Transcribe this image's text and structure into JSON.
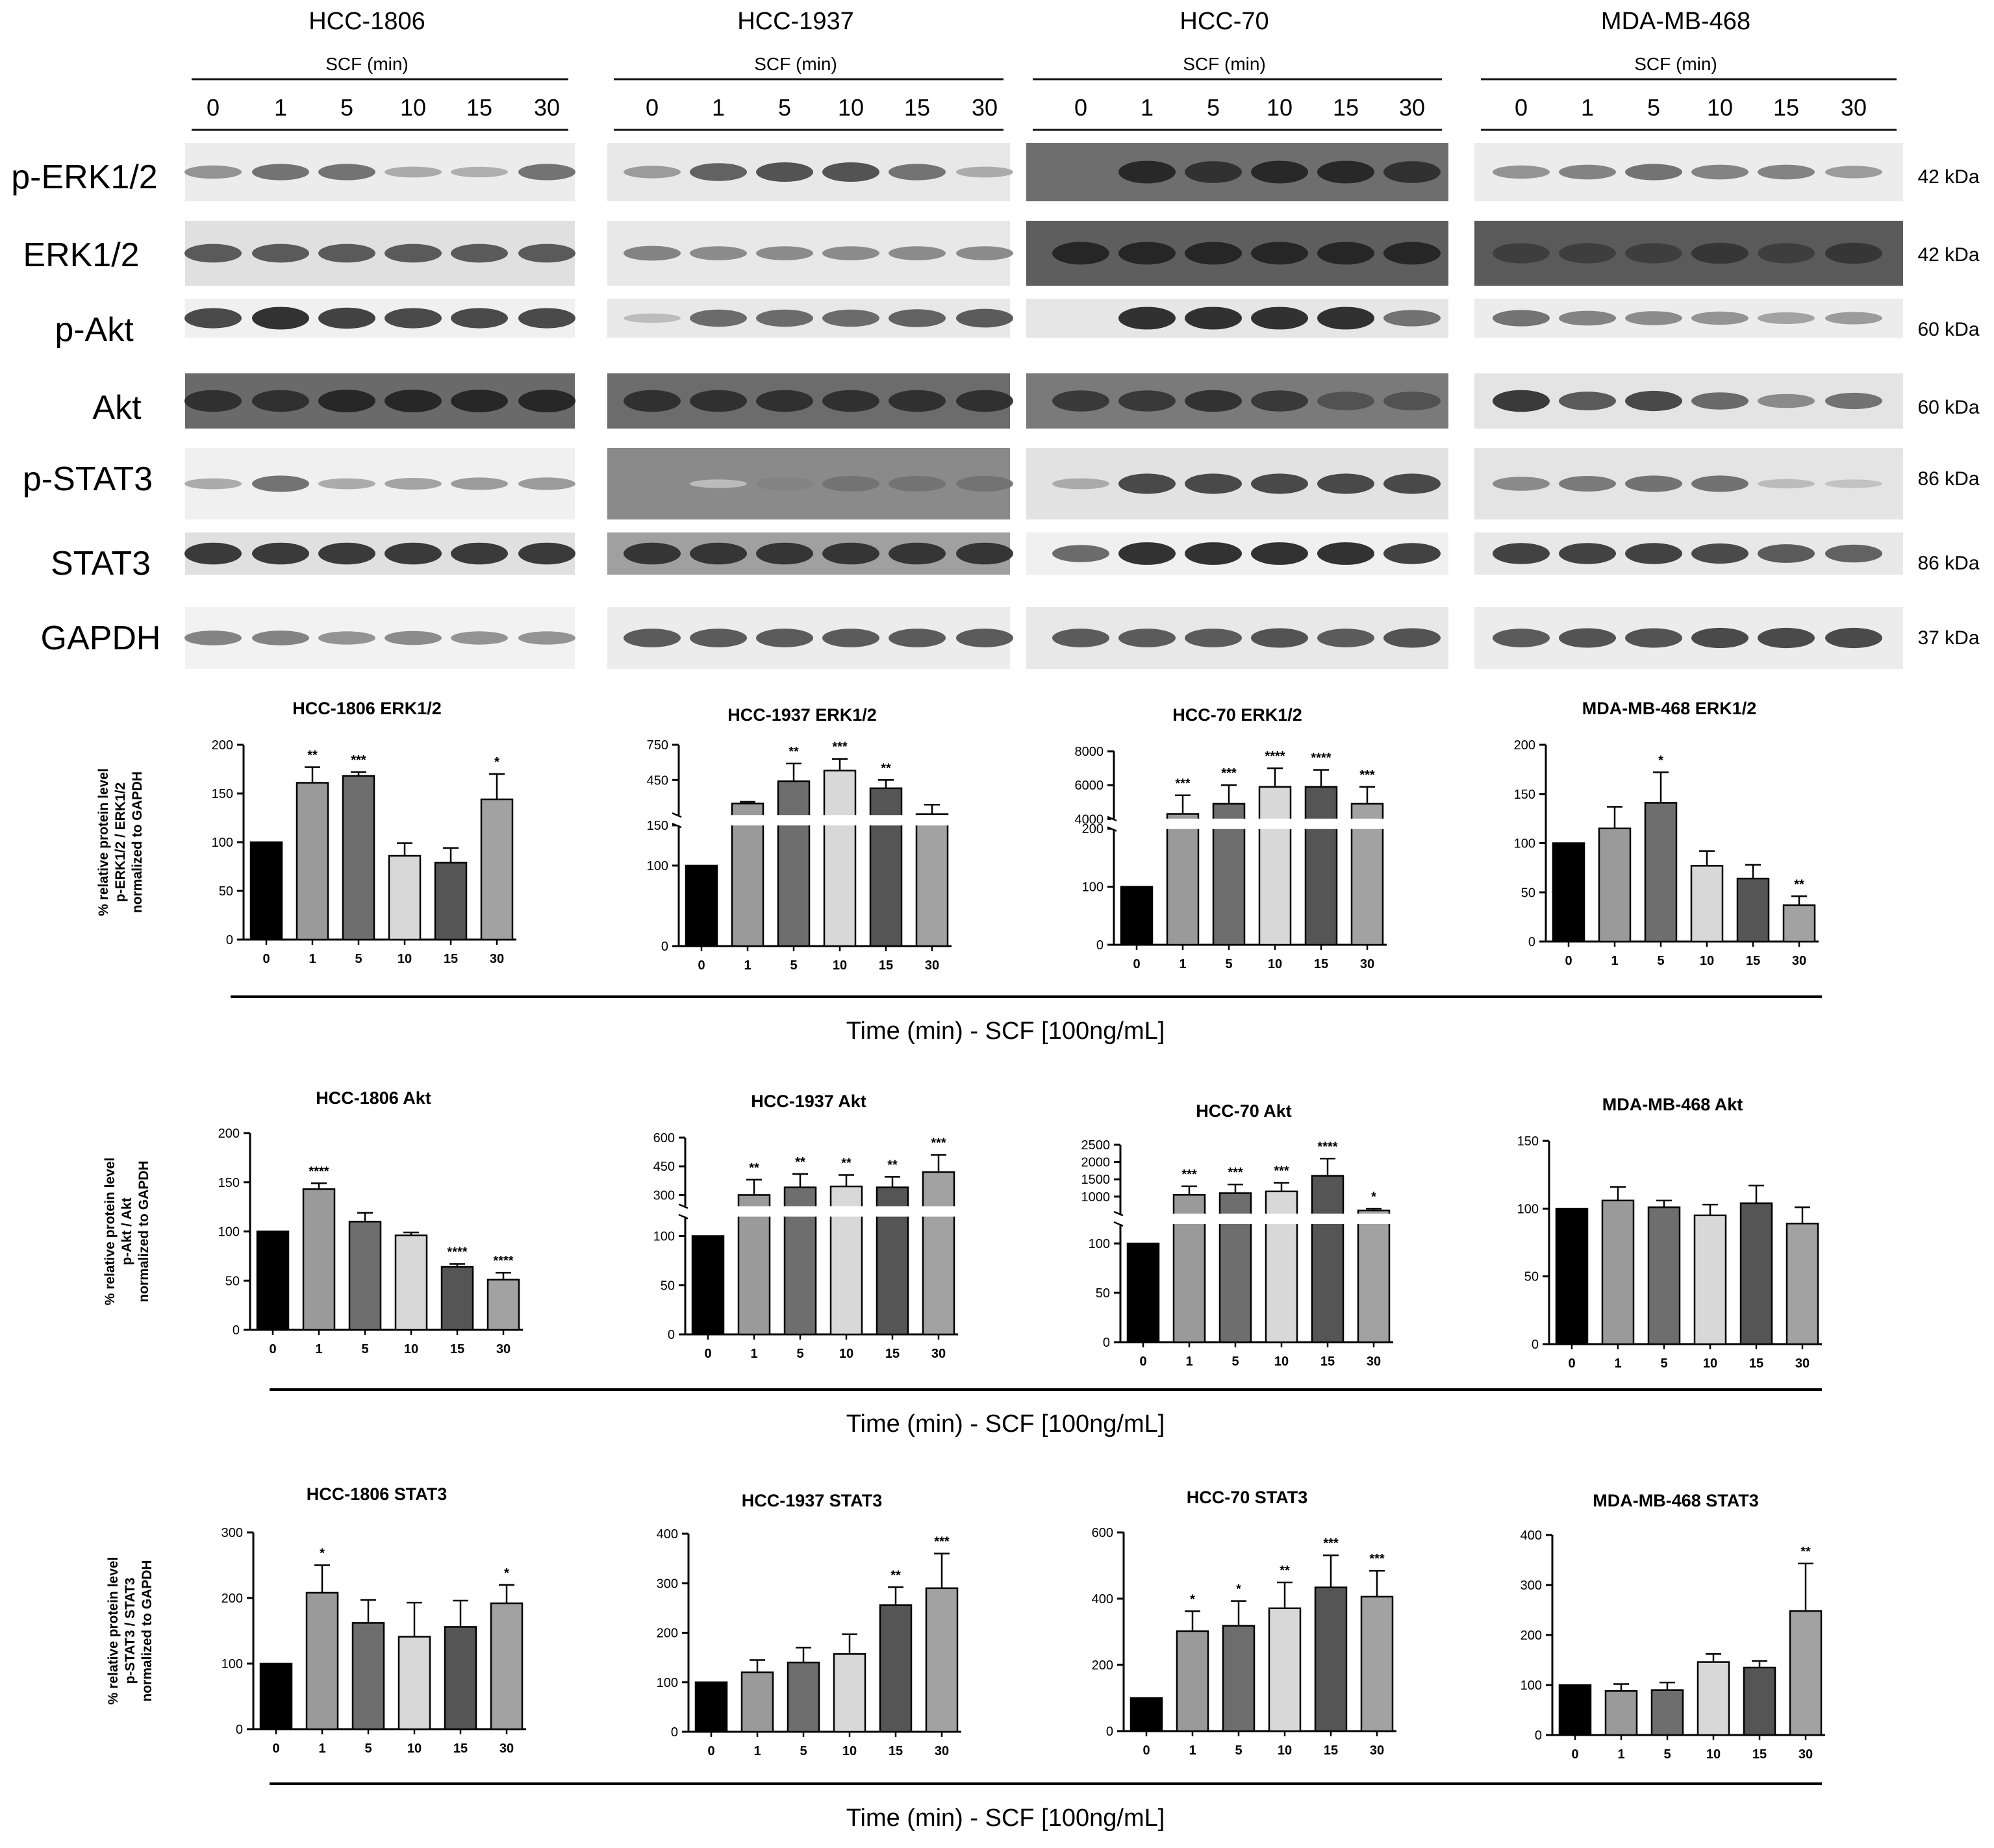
{
  "blot": {
    "cell_lines": [
      "HCC-1806",
      "HCC-1937",
      "HCC-70",
      "MDA-MB-468"
    ],
    "treatment_label": "SCF (min)",
    "timepoints": [
      "0",
      "1",
      "5",
      "10",
      "15",
      "30"
    ],
    "rows": [
      {
        "label": "p-ERK1/2",
        "kda": "42 kDa"
      },
      {
        "label": "ERK1/2",
        "kda": "42 kDa"
      },
      {
        "label": "p-Akt",
        "kda": "60 kDa"
      },
      {
        "label": "Akt",
        "kda": "60 kDa"
      },
      {
        "label": "p-STAT3",
        "kda": "86 kDa"
      },
      {
        "label": "STAT3",
        "kda": "86 kDa"
      },
      {
        "label": "GAPDH",
        "kda": "37 kDa"
      }
    ]
  },
  "time_axis_label": "Time (min)  -  SCF [100ng/mL]",
  "bar_colors": [
    "#000000",
    "#9a9a9a",
    "#6e6e6e",
    "#d8d8d8",
    "#555555",
    "#a2a2a2"
  ],
  "chart_data": [
    {
      "type": "bar",
      "title": "HCC-1806 ERK1/2",
      "ylabel": "% relative protein level\np-ERK1/2 / ERK1/2\nnormalized to GAPDH",
      "categories": [
        "0",
        "1",
        "5",
        "10",
        "15",
        "30"
      ],
      "values": [
        100,
        161,
        168,
        86,
        79,
        144
      ],
      "errors": [
        0,
        16,
        4,
        13,
        15,
        26
      ],
      "significance": [
        "",
        "**",
        "***",
        "",
        "",
        "*"
      ],
      "yticks": [
        0,
        50,
        100,
        150,
        200
      ],
      "ylim": [
        0,
        200
      ]
    },
    {
      "type": "bar",
      "title": "HCC-1937 ERK1/2",
      "ylabel": "",
      "categories": [
        "0",
        "1",
        "5",
        "10",
        "15",
        "30"
      ],
      "values": [
        100,
        250,
        440,
        530,
        380,
        160
      ],
      "errors": [
        0,
        15,
        150,
        100,
        70,
        80
      ],
      "significance": [
        "",
        "",
        "**",
        "***",
        "**",
        ""
      ],
      "yticks": [
        0,
        100,
        150,
        450,
        750
      ],
      "axis_break": {
        "lower": [
          0,
          150
        ],
        "upper": [
          150,
          750
        ]
      }
    },
    {
      "type": "bar",
      "title": "HCC-70 ERK1/2",
      "ylabel": "",
      "categories": [
        "0",
        "1",
        "5",
        "10",
        "15",
        "30"
      ],
      "values": [
        100,
        4300,
        4900,
        5900,
        5900,
        4900
      ],
      "errors": [
        0,
        1100,
        1100,
        1100,
        1000,
        1000
      ],
      "significance": [
        "",
        "***",
        "***",
        "****",
        "****",
        "***"
      ],
      "yticks": [
        0,
        100,
        200,
        4000,
        6000,
        8000
      ],
      "axis_break": {
        "lower": [
          0,
          200
        ],
        "upper": [
          4000,
          8000
        ]
      }
    },
    {
      "type": "bar",
      "title": "MDA-MB-468 ERK1/2",
      "ylabel": "",
      "categories": [
        "0",
        "1",
        "5",
        "10",
        "15",
        "30"
      ],
      "values": [
        100,
        115,
        141,
        77,
        64,
        37
      ],
      "errors": [
        0,
        22,
        31,
        15,
        14,
        9
      ],
      "significance": [
        "",
        "",
        "*",
        "",
        "",
        "**"
      ],
      "yticks": [
        0,
        50,
        100,
        150,
        200
      ],
      "ylim": [
        0,
        200
      ]
    },
    {
      "type": "bar",
      "title": "HCC-1806 Akt",
      "ylabel": "% relative protein level\np-Akt / Akt\nnormalized to GAPDH",
      "categories": [
        "0",
        "1",
        "5",
        "10",
        "15",
        "30"
      ],
      "values": [
        100,
        143,
        110,
        96,
        64,
        51
      ],
      "errors": [
        0,
        6,
        9,
        3,
        3,
        7
      ],
      "significance": [
        "",
        "****",
        "",
        "",
        "****",
        "****"
      ],
      "yticks": [
        0,
        50,
        100,
        150,
        200
      ],
      "ylim": [
        0,
        200
      ]
    },
    {
      "type": "bar",
      "title": "HCC-1937 Akt",
      "ylabel": "",
      "categories": [
        "0",
        "1",
        "5",
        "10",
        "15",
        "30"
      ],
      "values": [
        100,
        300,
        340,
        345,
        340,
        420
      ],
      "errors": [
        0,
        80,
        70,
        60,
        55,
        90
      ],
      "significance": [
        "",
        "**",
        "**",
        "**",
        "**",
        "***"
      ],
      "yticks": [
        0,
        50,
        100,
        300,
        450,
        600
      ],
      "axis_break": {
        "lower": [
          0,
          120
        ],
        "upper": [
          240,
          600
        ]
      }
    },
    {
      "type": "bar",
      "title": "HCC-70 Akt",
      "ylabel": "",
      "categories": [
        "0",
        "1",
        "5",
        "10",
        "15",
        "30"
      ],
      "values": [
        100,
        1050,
        1100,
        1150,
        1600,
        600
      ],
      "errors": [
        0,
        250,
        250,
        250,
        500,
        50
      ],
      "significance": [
        "",
        "***",
        "***",
        "***",
        "****",
        "*"
      ],
      "yticks": [
        0,
        50,
        100,
        1000,
        1500,
        2000,
        2500
      ],
      "axis_break": {
        "lower": [
          0,
          120
        ],
        "upper": [
          500,
          2500
        ]
      }
    },
    {
      "type": "bar",
      "title": "MDA-MB-468 Akt",
      "ylabel": "",
      "categories": [
        "0",
        "1",
        "5",
        "10",
        "15",
        "30"
      ],
      "values": [
        100,
        106,
        101,
        95,
        104,
        89
      ],
      "errors": [
        0,
        10,
        5,
        8,
        13,
        12
      ],
      "significance": [
        "",
        "",
        "",
        "",
        "",
        ""
      ],
      "yticks": [
        0,
        50,
        100,
        150
      ],
      "ylim": [
        0,
        150
      ]
    },
    {
      "type": "bar",
      "title": "HCC-1806 STAT3",
      "ylabel": "% relative protein level\np-STAT3 / STAT3\nnormalized to GAPDH",
      "categories": [
        "0",
        "1",
        "5",
        "10",
        "15",
        "30"
      ],
      "values": [
        100,
        208,
        162,
        141,
        156,
        192
      ],
      "errors": [
        0,
        42,
        35,
        52,
        40,
        28
      ],
      "significance": [
        "",
        "*",
        "",
        "",
        "",
        "*"
      ],
      "yticks": [
        0,
        100,
        200,
        300
      ],
      "ylim": [
        0,
        300
      ]
    },
    {
      "type": "bar",
      "title": "HCC-1937 STAT3",
      "ylabel": "",
      "categories": [
        "0",
        "1",
        "5",
        "10",
        "15",
        "30"
      ],
      "values": [
        100,
        120,
        140,
        157,
        256,
        290
      ],
      "errors": [
        0,
        25,
        30,
        40,
        36,
        70
      ],
      "significance": [
        "",
        "",
        "",
        "",
        "**",
        "***"
      ],
      "yticks": [
        0,
        100,
        200,
        300,
        400
      ],
      "ylim": [
        0,
        400
      ]
    },
    {
      "type": "bar",
      "title": "HCC-70 STAT3",
      "ylabel": "",
      "categories": [
        "0",
        "1",
        "5",
        "10",
        "15",
        "30"
      ],
      "values": [
        100,
        302,
        318,
        371,
        434,
        406
      ],
      "errors": [
        0,
        60,
        75,
        78,
        97,
        78
      ],
      "significance": [
        "",
        "*",
        "*",
        "**",
        "***",
        "***"
      ],
      "yticks": [
        0,
        200,
        400,
        600
      ],
      "ylim": [
        0,
        600
      ]
    },
    {
      "type": "bar",
      "title": "MDA-MB-468 STAT3",
      "ylabel": "",
      "categories": [
        "0",
        "1",
        "5",
        "10",
        "15",
        "30"
      ],
      "values": [
        100,
        88,
        90,
        146,
        135,
        248
      ],
      "errors": [
        0,
        14,
        15,
        16,
        13,
        95
      ],
      "significance": [
        "",
        "",
        "",
        "",
        "",
        "**"
      ],
      "yticks": [
        0,
        100,
        200,
        300,
        400
      ],
      "ylim": [
        0,
        400
      ]
    }
  ]
}
